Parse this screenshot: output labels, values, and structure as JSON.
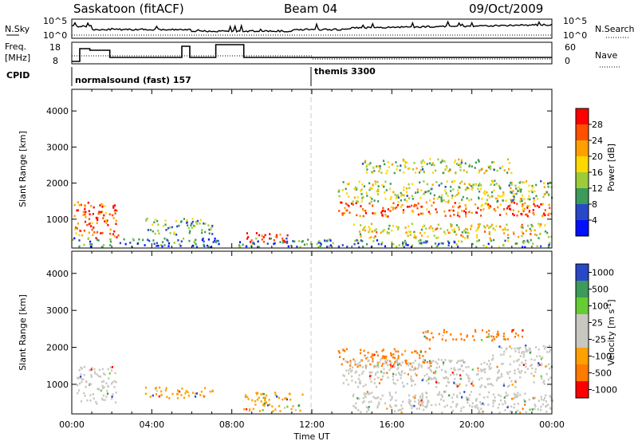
{
  "header": {
    "station": "Saskatoon (fitACF)",
    "beam": "Beam 04",
    "date": "09/Oct/2009"
  },
  "top_panels": {
    "nsky_label": "N.Sky",
    "nsky_ticks": [
      "10^5",
      "10^0"
    ],
    "nsearch_label": "N.Search",
    "nsearch_ticks": [
      "10^5",
      "10^0"
    ],
    "freq_label": "Freq.",
    "freq_unit": "[MHz]",
    "freq_ticks": [
      "18",
      "8"
    ],
    "nave_label": "Nave",
    "nave_ticks": [
      "60",
      "0"
    ],
    "cpid_label": "CPID",
    "cpid_modes": [
      {
        "name": "normalsound (fast) 157",
        "start_hour": 0
      },
      {
        "name": "themis 3300",
        "start_hour": 12
      }
    ]
  },
  "chart_data": [
    {
      "type": "heatmap",
      "panel": "power",
      "ylabel": "Slant Range [km]",
      "y_ticks": [
        "1000",
        "2000",
        "3000",
        "4000"
      ],
      "ylim": [
        200,
        4600
      ],
      "x_ticks": [
        "00:00",
        "04:00",
        "08:00",
        "12:00",
        "16:00",
        "20:00",
        "00:00"
      ],
      "xlim_hours": [
        0,
        24
      ],
      "colorbar": {
        "label": "Power [dB]",
        "ticks": [
          "28",
          "24",
          "20",
          "16",
          "12",
          "8",
          "4"
        ],
        "colors": [
          "#ff0000",
          "#ff5000",
          "#ffa000",
          "#ffd800",
          "#9ccc3a",
          "#3c9a5a",
          "#2848c8",
          "#0010ff"
        ]
      },
      "regions": [
        {
          "x": [
            0.1,
            2.3
          ],
          "y": [
            500,
            1500
          ],
          "level": 0.8
        },
        {
          "x": [
            0.0,
            7.5
          ],
          "y": [
            250,
            500
          ],
          "level": 0.25
        },
        {
          "x": [
            3.6,
            7.0
          ],
          "y": [
            600,
            1050
          ],
          "level": 0.4
        },
        {
          "x": [
            8.7,
            10.8
          ],
          "y": [
            380,
            650
          ],
          "level": 0.92
        },
        {
          "x": [
            8.3,
            13.0
          ],
          "y": [
            250,
            500
          ],
          "level": 0.3
        },
        {
          "x": [
            13.3,
            24.0
          ],
          "y": [
            1100,
            1500
          ],
          "level": 0.8
        },
        {
          "x": [
            13.3,
            24.0
          ],
          "y": [
            1500,
            2100
          ],
          "level": 0.45
        },
        {
          "x": [
            14.0,
            24.0
          ],
          "y": [
            500,
            900
          ],
          "level": 0.55
        },
        {
          "x": [
            14.5,
            22.0
          ],
          "y": [
            2300,
            2700
          ],
          "level": 0.45
        },
        {
          "x": [
            12.0,
            24.0
          ],
          "y": [
            250,
            450
          ],
          "level": 0.3
        }
      ]
    },
    {
      "type": "heatmap",
      "panel": "velocity",
      "ylabel": "Slant Range [km]",
      "xlabel": "Time UT",
      "y_ticks": [
        "1000",
        "2000",
        "3000",
        "4000"
      ],
      "ylim": [
        200,
        4600
      ],
      "x_ticks": [
        "00:00",
        "04:00",
        "08:00",
        "12:00",
        "16:00",
        "20:00",
        "00:00"
      ],
      "xlim_hours": [
        0,
        24
      ],
      "colorbar": {
        "label": "Velocity [m s",
        "label_superscript": "-1",
        "label_close": "]",
        "ticks": [
          "1000",
          "500",
          "100",
          "25",
          "-25",
          "-100",
          "-500",
          "-1000"
        ],
        "colors": [
          "#2848c8",
          "#3c9a5a",
          "#66cc33",
          "#c8c8c0",
          "#c8c8c0",
          "#ffa000",
          "#ff7a00",
          "#ff0000"
        ]
      },
      "regions": [
        {
          "x": [
            0.2,
            2.2
          ],
          "y": [
            500,
            1500
          ],
          "color": "#c8c8c0"
        },
        {
          "x": [
            3.6,
            7.0
          ],
          "y": [
            650,
            950
          ],
          "color": "#ffa000"
        },
        {
          "x": [
            8.5,
            11.5
          ],
          "y": [
            300,
            800
          ],
          "color": "#ffa000"
        },
        {
          "x": [
            13.3,
            18.0
          ],
          "y": [
            1500,
            2000
          ],
          "color": "#ff7a00"
        },
        {
          "x": [
            17.5,
            22.5
          ],
          "y": [
            2200,
            2500
          ],
          "color": "#ff7a00"
        },
        {
          "x": [
            13.5,
            24.0
          ],
          "y": [
            950,
            1700
          ],
          "color": "#c8c8c0"
        },
        {
          "x": [
            14.0,
            24.0
          ],
          "y": [
            250,
            850
          ],
          "color": "#c8c8c0"
        },
        {
          "x": [
            21.0,
            24.0
          ],
          "y": [
            1700,
            2100
          ],
          "color": "#c8c8c0"
        }
      ]
    }
  ]
}
